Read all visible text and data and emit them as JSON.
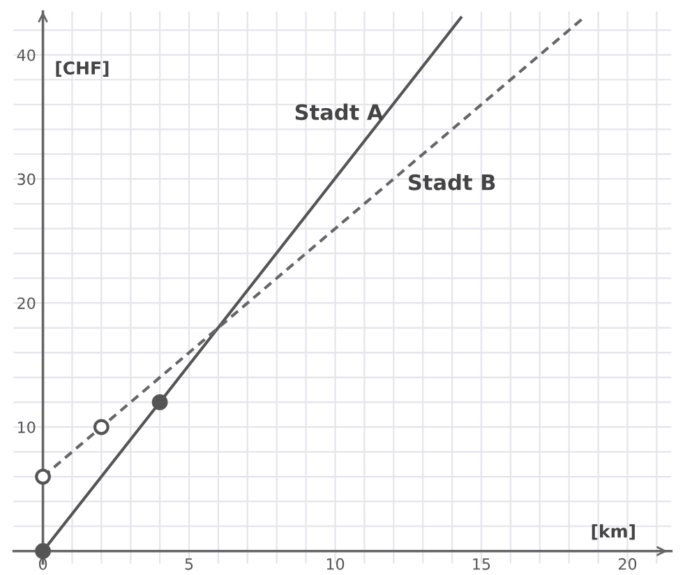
{
  "chart_data": {
    "type": "line",
    "xlabel": "[km]",
    "ylabel": "[CHF]",
    "xlim": [
      -1,
      21.5
    ],
    "ylim": [
      -1,
      43.5
    ],
    "xticks": [
      0,
      {
        "value": 1,
        "label": null
      },
      {
        "value": 2,
        "label": null
      },
      {
        "value": 3,
        "label": null
      },
      {
        "value": 4,
        "label": null
      },
      5,
      {
        "value": 6,
        "label": null
      },
      {
        "value": 7,
        "label": null
      },
      {
        "value": 8,
        "label": null
      },
      {
        "value": 9,
        "label": null
      },
      10,
      {
        "value": 11,
        "label": null
      },
      {
        "value": 12,
        "label": null
      },
      {
        "value": 13,
        "label": null
      },
      {
        "value": 14,
        "label": null
      },
      15,
      {
        "value": 16,
        "label": null
      },
      {
        "value": 17,
        "label": null
      },
      {
        "value": 18,
        "label": null
      },
      {
        "value": 19,
        "label": null
      },
      20,
      {
        "value": 21,
        "label": null
      }
    ],
    "yticks": [
      {
        "value": 0,
        "label": null
      },
      {
        "value": 2,
        "label": null
      },
      {
        "value": 4,
        "label": null
      },
      {
        "value": 6,
        "label": null
      },
      {
        "value": 8,
        "label": null
      },
      10,
      {
        "value": 12,
        "label": null
      },
      {
        "value": 14,
        "label": null
      },
      {
        "value": 16,
        "label": null
      },
      {
        "value": 18,
        "label": null
      },
      20,
      {
        "value": 22,
        "label": null
      },
      {
        "value": 24,
        "label": null
      },
      {
        "value": 26,
        "label": null
      },
      {
        "value": 28,
        "label": null
      },
      30,
      {
        "value": 32,
        "label": null
      },
      {
        "value": 34,
        "label": null
      },
      {
        "value": 36,
        "label": null
      },
      {
        "value": 38,
        "label": null
      },
      40,
      {
        "value": 42,
        "label": null
      }
    ],
    "grid": true,
    "series": [
      {
        "name": "Stadt A",
        "line_style": "solid",
        "color": "#555555",
        "x": [
          0,
          4,
          14.3
        ],
        "values": [
          0,
          12,
          43
        ]
      },
      {
        "name": "Stadt B",
        "line_style": "dashed",
        "color": "#666666",
        "x": [
          0,
          2,
          18.5
        ],
        "values": [
          6,
          10,
          43
        ]
      },
      {
        "type": "scatter",
        "marker": "circle",
        "color": "#555555",
        "colors": [
          "#555555",
          "#555555"
        ],
        "x": [
          0,
          4
        ],
        "values": [
          0,
          12
        ]
      },
      {
        "type": "scatter",
        "marker": "circle",
        "color": "#555555",
        "colors": [
          "#ffffff",
          "#ffffff"
        ],
        "x": [
          0,
          2
        ],
        "values": [
          6,
          10
        ]
      }
    ]
  }
}
